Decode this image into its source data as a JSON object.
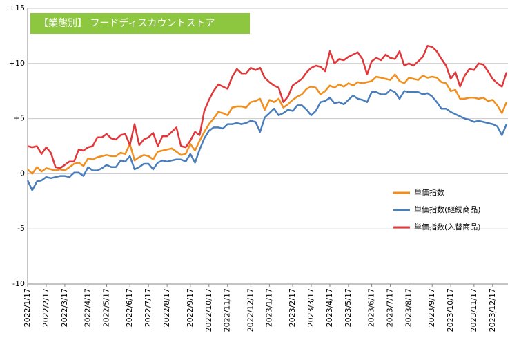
{
  "chart_data": {
    "type": "line",
    "title": "【業態別】 フードディスカウントストア",
    "categories": [
      "2022/1/17",
      null,
      null,
      null,
      "2022/2/17",
      null,
      null,
      null,
      "2022/3/17",
      null,
      null,
      null,
      null,
      "2022/4/17",
      null,
      null,
      null,
      "2022/5/17",
      null,
      null,
      null,
      null,
      "2022/6/17",
      null,
      null,
      null,
      "2022/7/17",
      null,
      null,
      null,
      "2022/8/17",
      null,
      null,
      null,
      null,
      "2022/9/17",
      null,
      null,
      null,
      "2022/10/17",
      null,
      null,
      null,
      "2022/11/17",
      null,
      null,
      null,
      null,
      "2022/12/17",
      null,
      null,
      null,
      "2023/1/17",
      null,
      null,
      null,
      null,
      "2023/2/17",
      null,
      null,
      null,
      "2023/3/17",
      null,
      null,
      null,
      "2023/4/17",
      null,
      null,
      null,
      "2023/5/17",
      null,
      null,
      null,
      null,
      "2023/6/17",
      null,
      null,
      null,
      "2023/7/17",
      null,
      null,
      null,
      "2023/8/17",
      null,
      null,
      null,
      null,
      "2023/9/17",
      null,
      null,
      null,
      "2023/10/17",
      null,
      null,
      null,
      null,
      "2023/11/17",
      null,
      null,
      null,
      "2023/12/17",
      null,
      null,
      null
    ],
    "series": [
      {
        "name": "単価指数(継続商品)",
        "color": "#4a7ebb",
        "values": [
          -0.6,
          -1.5,
          -0.7,
          -0.6,
          -0.3,
          -0.4,
          -0.3,
          -0.2,
          -0.2,
          -0.3,
          0.1,
          0.1,
          -0.2,
          0.6,
          0.3,
          0.3,
          0.5,
          0.8,
          0.6,
          0.6,
          1.2,
          1.1,
          1.6,
          0.4,
          0.6,
          0.9,
          0.9,
          0.4,
          1.0,
          1.2,
          1.1,
          1.2,
          1.3,
          1.3,
          1.1,
          1.8,
          1.0,
          2.2,
          3.2,
          3.9,
          4.2,
          4.2,
          4.1,
          4.5,
          4.5,
          4.6,
          4.5,
          4.6,
          4.8,
          4.7,
          3.8,
          5.1,
          5.5,
          5.9,
          5.3,
          5.5,
          5.8,
          5.7,
          6.2,
          6.2,
          5.8,
          5.3,
          5.7,
          6.5,
          6.6,
          6.9,
          6.4,
          6.5,
          6.3,
          6.7,
          7.1,
          6.8,
          6.7,
          6.5,
          7.4,
          7.4,
          7.2,
          7.2,
          7.6,
          7.4,
          6.8,
          7.5,
          7.4,
          7.4,
          7.4,
          7.2,
          7.3,
          7.0,
          6.5,
          5.9,
          5.9,
          5.6,
          5.4,
          5.2,
          5.0,
          4.9,
          4.7,
          4.8,
          4.7,
          4.6,
          4.5,
          4.3,
          3.5,
          4.5
        ]
      },
      {
        "name": "単価指数",
        "color": "#f28e1c",
        "values": [
          0.4,
          0.0,
          0.6,
          0.2,
          0.5,
          0.4,
          0.3,
          0.4,
          0.3,
          0.6,
          0.9,
          1.0,
          0.7,
          1.4,
          1.3,
          1.5,
          1.6,
          1.7,
          1.6,
          1.6,
          1.9,
          1.8,
          2.7,
          1.2,
          1.5,
          1.7,
          1.6,
          1.3,
          2.0,
          2.1,
          2.2,
          2.3,
          2.0,
          1.7,
          1.8,
          2.7,
          2.1,
          3.0,
          3.8,
          4.5,
          5.0,
          5.6,
          5.5,
          5.3,
          6.0,
          6.1,
          6.1,
          6.0,
          6.5,
          6.6,
          6.8,
          5.8,
          6.7,
          6.5,
          6.8,
          6.0,
          6.3,
          6.7,
          7.0,
          7.2,
          7.7,
          7.9,
          7.8,
          7.2,
          7.5,
          8.0,
          7.8,
          8.1,
          7.9,
          8.2,
          8.0,
          8.3,
          8.2,
          8.3,
          8.4,
          8.8,
          8.7,
          8.6,
          8.5,
          9.0,
          8.4,
          8.2,
          8.7,
          8.6,
          8.5,
          8.9,
          8.7,
          8.8,
          8.7,
          8.3,
          8.2,
          7.5,
          7.6,
          6.8,
          6.8,
          6.9,
          6.9,
          6.8,
          6.9,
          6.6,
          6.7,
          6.2,
          5.5,
          6.5
        ]
      },
      {
        "name": "単価指数(入替商品)",
        "color": "#e0383a",
        "values": [
          2.5,
          2.4,
          2.5,
          1.8,
          2.4,
          1.9,
          0.6,
          0.5,
          0.8,
          1.1,
          1.1,
          2.2,
          2.1,
          2.4,
          2.5,
          3.3,
          3.3,
          3.6,
          3.2,
          3.1,
          3.5,
          3.6,
          2.6,
          4.5,
          2.6,
          3.1,
          3.3,
          3.7,
          2.5,
          3.4,
          3.4,
          3.8,
          4.2,
          2.5,
          2.4,
          3.0,
          3.8,
          3.5,
          5.7,
          6.7,
          7.5,
          8.1,
          7.9,
          7.7,
          8.8,
          9.5,
          9.1,
          9.1,
          9.6,
          9.4,
          9.6,
          8.7,
          8.3,
          8.0,
          7.8,
          6.5,
          7.0,
          8.0,
          8.3,
          8.6,
          9.2,
          9.6,
          9.8,
          9.7,
          9.3,
          11.1,
          10.0,
          10.4,
          10.3,
          10.6,
          10.8,
          11.0,
          10.4,
          9.0,
          10.2,
          10.5,
          10.3,
          10.8,
          10.5,
          10.4,
          11.1,
          9.8,
          10.0,
          9.8,
          10.2,
          10.6,
          11.6,
          11.5,
          11.1,
          10.4,
          9.8,
          8.6,
          9.2,
          7.9,
          8.9,
          9.5,
          9.4,
          10.0,
          9.9,
          9.3,
          8.6,
          8.2,
          7.9,
          9.2
        ]
      }
    ],
    "legend_order": [
      1,
      0,
      2
    ],
    "ylim": [
      -10,
      15
    ],
    "yticks": [
      {
        "value": -10,
        "label": "-10"
      },
      {
        "value": -5,
        "label": "-5"
      },
      0,
      {
        "value": 5,
        "label": "+5"
      },
      {
        "value": 10,
        "label": "+10"
      },
      {
        "value": 15,
        "label": "+15"
      }
    ],
    "grid": true
  }
}
